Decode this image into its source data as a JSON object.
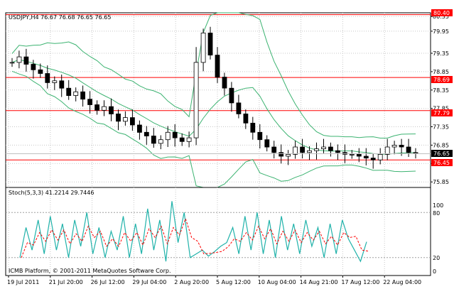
{
  "main": {
    "header": "USDJPY,H4  76.67 76.68 76.65 76.65",
    "price_labels": [
      "80.35",
      "79.95",
      "79.35",
      "78.85",
      "78.35",
      "77.85",
      "77.35",
      "76.85",
      "76.35",
      "75.85"
    ],
    "marker_labels": {
      "top": "80.40",
      "l1": "78.69",
      "l2": "77.79",
      "current": "76.65",
      "l3": "76.45"
    },
    "colors": {
      "candle": "#000000",
      "bands": "#3cb371",
      "red_line": "#ff0000",
      "price_box": "#ff0000",
      "stoch_main": "#20b2aa",
      "stoch_signal": "#ff0000"
    }
  },
  "stoch": {
    "header": "Stoch(5,3,3) 41.2214 29.7446",
    "scale_labels": [
      "100",
      "80",
      "20",
      "0"
    ]
  },
  "footer": {
    "copyright": "ICMB Platform, © 2001-2011 MetaQuotes Software Corp."
  },
  "time_axis": {
    "labels": [
      "19 Jul 2011",
      "21 Jul 20:00",
      "26 Jul 12:00",
      "29 Jul 04:00",
      "2 Aug 20:00",
      "5 Aug 12:00",
      "10 Aug 04:00",
      "14 Aug 21:00",
      "17 Aug 12:00",
      "22 Aug 04:00"
    ]
  },
  "chart_data": {
    "type": "candlestick",
    "symbol": "USDJPY",
    "timeframe": "H4",
    "ylim": [
      75.7,
      80.45
    ],
    "horizontal_lines": [
      80.4,
      78.69,
      77.79,
      76.45
    ],
    "current_price": 76.65,
    "close_path": [
      79.1,
      79.25,
      79.05,
      78.9,
      78.8,
      78.55,
      78.6,
      78.4,
      78.2,
      78.3,
      78.1,
      77.95,
      77.8,
      77.9,
      77.7,
      77.5,
      77.6,
      77.4,
      77.2,
      77.1,
      76.9,
      77.0,
      77.2,
      77.05,
      76.95,
      77.05,
      79.1,
      79.9,
      79.3,
      78.7,
      78.4,
      78.0,
      77.7,
      77.45,
      77.2,
      77.0,
      76.8,
      76.65,
      76.55,
      76.6,
      76.8,
      76.65,
      76.7,
      76.75,
      76.8,
      76.7,
      76.65,
      76.6,
      76.6,
      76.55,
      76.5,
      76.45,
      76.6,
      76.8,
      76.85,
      76.8,
      76.65,
      76.65
    ],
    "stoch_main": [
      20,
      60,
      30,
      70,
      25,
      75,
      30,
      65,
      20,
      70,
      35,
      80,
      25,
      60,
      20,
      55,
      30,
      75,
      20,
      65,
      25,
      85,
      30,
      70,
      15,
      95,
      40,
      80,
      20,
      25,
      30,
      22,
      28,
      35,
      40,
      60,
      25,
      75,
      30,
      80,
      25,
      70,
      20,
      75,
      30,
      65,
      25,
      70,
      35,
      60,
      20,
      65,
      25,
      70,
      45,
      30,
      15,
      41
    ]
  }
}
